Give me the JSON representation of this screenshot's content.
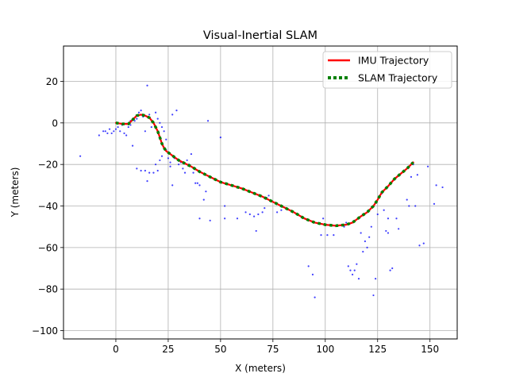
{
  "chart_data": {
    "type": "line",
    "title": "Visual-Inertial SLAM",
    "xlabel": "X (meters)",
    "ylabel": "Y (meters)",
    "xlim": [
      -25,
      163
    ],
    "ylim": [
      -104,
      37
    ],
    "xticks": [
      0,
      25,
      50,
      75,
      100,
      125,
      150
    ],
    "yticks": [
      -100,
      -80,
      -60,
      -40,
      -20,
      0,
      20
    ],
    "xtick_labels": [
      "0",
      "25",
      "50",
      "75",
      "100",
      "125",
      "150"
    ],
    "ytick_labels": [
      "−100",
      "−80",
      "−60",
      "−40",
      "−20",
      "0",
      "20"
    ],
    "grid": true,
    "legend_position": "top-right",
    "series": [
      {
        "name": "IMU Trajectory",
        "color": "#ff0000",
        "style": "solid",
        "points": [
          [
            0,
            0
          ],
          [
            3,
            -0.5
          ],
          [
            6,
            -0.5
          ],
          [
            8,
            1.5
          ],
          [
            10,
            3.5
          ],
          [
            12,
            4
          ],
          [
            14,
            3.5
          ],
          [
            16,
            2.5
          ],
          [
            18,
            0
          ],
          [
            20,
            -4
          ],
          [
            21,
            -7
          ],
          [
            22,
            -10
          ],
          [
            23,
            -12
          ],
          [
            24,
            -13.5
          ],
          [
            26,
            -15
          ],
          [
            28,
            -16.5
          ],
          [
            30,
            -18
          ],
          [
            33,
            -19.5
          ],
          [
            36,
            -21
          ],
          [
            40,
            -23.5
          ],
          [
            45,
            -26
          ],
          [
            50,
            -28.5
          ],
          [
            55,
            -30
          ],
          [
            60,
            -31.5
          ],
          [
            65,
            -33.5
          ],
          [
            70,
            -35.5
          ],
          [
            75,
            -38
          ],
          [
            80,
            -40.5
          ],
          [
            85,
            -43
          ],
          [
            90,
            -46
          ],
          [
            95,
            -48
          ],
          [
            100,
            -49
          ],
          [
            105,
            -49.5
          ],
          [
            110,
            -49
          ],
          [
            113,
            -48
          ],
          [
            117,
            -45
          ],
          [
            120,
            -43
          ],
          [
            123,
            -40
          ],
          [
            125,
            -37
          ],
          [
            127,
            -33.5
          ],
          [
            130,
            -30.5
          ],
          [
            133,
            -27
          ],
          [
            136,
            -24.5
          ],
          [
            139,
            -22
          ],
          [
            142,
            -19
          ]
        ]
      },
      {
        "name": "SLAM Trajectory",
        "color": "#008000",
        "style": "dotted",
        "points": [
          [
            0,
            0
          ],
          [
            3,
            -0.5
          ],
          [
            6,
            -0.5
          ],
          [
            8,
            1.5
          ],
          [
            10,
            3.5
          ],
          [
            12,
            4
          ],
          [
            14,
            3.5
          ],
          [
            16,
            2.5
          ],
          [
            18,
            0
          ],
          [
            20,
            -4
          ],
          [
            21,
            -7
          ],
          [
            22,
            -10
          ],
          [
            23,
            -12
          ],
          [
            24,
            -13.5
          ],
          [
            26,
            -15
          ],
          [
            28,
            -16.5
          ],
          [
            30,
            -18
          ],
          [
            33,
            -19.5
          ],
          [
            36,
            -21
          ],
          [
            40,
            -23.5
          ],
          [
            45,
            -26
          ],
          [
            50,
            -28.5
          ],
          [
            55,
            -30
          ],
          [
            60,
            -31.5
          ],
          [
            65,
            -33.5
          ],
          [
            70,
            -35.5
          ],
          [
            75,
            -38
          ],
          [
            80,
            -40.5
          ],
          [
            85,
            -43
          ],
          [
            90,
            -46
          ],
          [
            95,
            -48
          ],
          [
            100,
            -49
          ],
          [
            105,
            -49.5
          ],
          [
            110,
            -49
          ],
          [
            113,
            -48
          ],
          [
            117,
            -45
          ],
          [
            120,
            -43
          ],
          [
            123,
            -40
          ],
          [
            125,
            -37
          ],
          [
            127,
            -33.5
          ],
          [
            130,
            -30.5
          ],
          [
            133,
            -27
          ],
          [
            136,
            -24.5
          ],
          [
            139,
            -22
          ],
          [
            142,
            -19
          ]
        ]
      },
      {
        "name": "",
        "type": "scatter",
        "color": "#0000ff",
        "points": [
          [
            -17,
            -16
          ],
          [
            -8,
            -6
          ],
          [
            -6,
            -4
          ],
          [
            -5,
            -4
          ],
          [
            -4,
            -5
          ],
          [
            -3,
            -3
          ],
          [
            -2,
            -5
          ],
          [
            -1,
            -4
          ],
          [
            0,
            -3
          ],
          [
            1,
            -2
          ],
          [
            2,
            -4
          ],
          [
            3,
            -1
          ],
          [
            4,
            -5
          ],
          [
            5,
            -6
          ],
          [
            6,
            -2
          ],
          [
            7,
            -1
          ],
          [
            7,
            1
          ],
          [
            8,
            -11
          ],
          [
            9,
            1
          ],
          [
            10,
            2
          ],
          [
            11,
            5
          ],
          [
            12,
            6
          ],
          [
            13,
            3
          ],
          [
            14,
            -4
          ],
          [
            15,
            18
          ],
          [
            16,
            4
          ],
          [
            17,
            -2
          ],
          [
            19,
            5
          ],
          [
            20,
            2
          ],
          [
            21,
            0
          ],
          [
            22,
            -2
          ],
          [
            23,
            -4
          ],
          [
            19,
            -20
          ],
          [
            10,
            -22
          ],
          [
            12,
            -23
          ],
          [
            14,
            -23
          ],
          [
            15,
            -28
          ],
          [
            16,
            -24
          ],
          [
            18,
            -24
          ],
          [
            20,
            -23
          ],
          [
            21,
            -18
          ],
          [
            22,
            -16
          ],
          [
            24,
            -8
          ],
          [
            24,
            -13
          ],
          [
            25,
            -17
          ],
          [
            26,
            -19
          ],
          [
            26,
            -21
          ],
          [
            27,
            -30
          ],
          [
            27,
            4
          ],
          [
            29,
            6
          ],
          [
            28,
            -17
          ],
          [
            30,
            -20
          ],
          [
            31,
            -19
          ],
          [
            32,
            -22
          ],
          [
            33,
            -24
          ],
          [
            34,
            -18
          ],
          [
            35,
            -20
          ],
          [
            36,
            -15
          ],
          [
            37,
            -24
          ],
          [
            38,
            -29
          ],
          [
            39,
            -29
          ],
          [
            40,
            -30
          ],
          [
            40,
            -46
          ],
          [
            42,
            -37
          ],
          [
            43,
            -33
          ],
          [
            44,
            1
          ],
          [
            45,
            -47
          ],
          [
            50,
            -7
          ],
          [
            52,
            -40
          ],
          [
            52,
            -46
          ],
          [
            58,
            -46
          ],
          [
            62,
            -43
          ],
          [
            64,
            -44
          ],
          [
            66,
            -45
          ],
          [
            67,
            -52
          ],
          [
            68,
            -44
          ],
          [
            70,
            -43
          ],
          [
            71,
            -41
          ],
          [
            72,
            -36
          ],
          [
            73,
            -35
          ],
          [
            77,
            -43
          ],
          [
            79,
            -42
          ],
          [
            92,
            -69
          ],
          [
            94,
            -73
          ],
          [
            95,
            -84
          ],
          [
            98,
            -54
          ],
          [
            99,
            -46
          ],
          [
            100,
            -49
          ],
          [
            101,
            -54
          ],
          [
            104,
            -54
          ],
          [
            108,
            -49
          ],
          [
            109,
            -50
          ],
          [
            110,
            -48
          ],
          [
            111,
            -69
          ],
          [
            112,
            -71
          ],
          [
            113,
            -73
          ],
          [
            114,
            -71
          ],
          [
            115,
            -68
          ],
          [
            116,
            -75
          ],
          [
            117,
            -53
          ],
          [
            118,
            -62
          ],
          [
            119,
            -57
          ],
          [
            120,
            -60
          ],
          [
            121,
            -55
          ],
          [
            122,
            -50
          ],
          [
            123,
            -83
          ],
          [
            124,
            -75
          ],
          [
            125,
            -44
          ],
          [
            126,
            -35
          ],
          [
            127,
            -34
          ],
          [
            128,
            -42
          ],
          [
            129,
            -52
          ],
          [
            130,
            -46
          ],
          [
            130,
            -53
          ],
          [
            131,
            -71
          ],
          [
            132,
            -70
          ],
          [
            134,
            -46
          ],
          [
            135,
            -51
          ],
          [
            139,
            -37
          ],
          [
            140,
            -40
          ],
          [
            141,
            -26
          ],
          [
            142,
            -20
          ],
          [
            143,
            -40
          ],
          [
            144,
            -25
          ],
          [
            145,
            -59
          ],
          [
            147,
            -58
          ],
          [
            149,
            -21
          ],
          [
            152,
            -39
          ],
          [
            153,
            -30
          ],
          [
            156,
            -31
          ]
        ]
      }
    ]
  }
}
